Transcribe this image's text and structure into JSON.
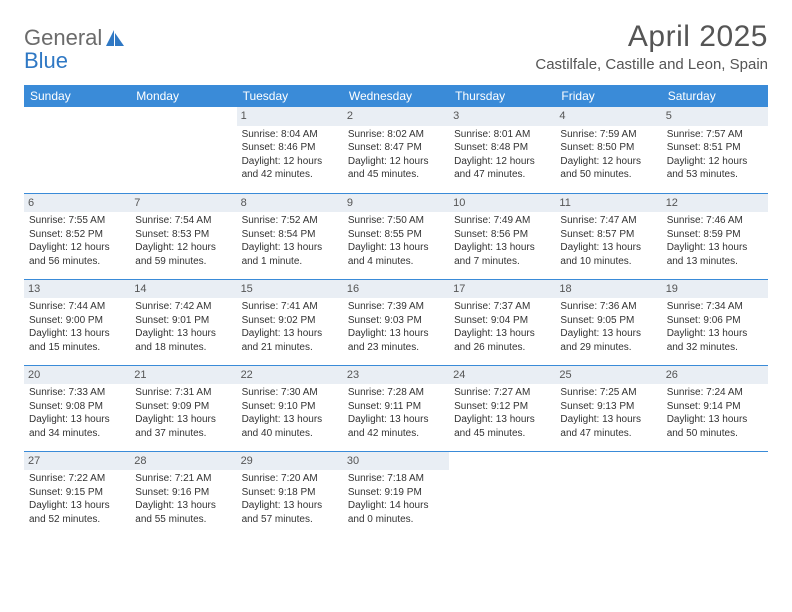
{
  "logo": {
    "line1": "General",
    "line2": "Blue"
  },
  "title": "April 2025",
  "location": "Castilfale, Castille and Leon, Spain",
  "colors": {
    "header_bg": "#3a8bd8",
    "header_text": "#ffffff",
    "daynum_bg": "#e9eef4",
    "border": "#3a8bd8",
    "page_bg": "#ffffff",
    "text": "#333333",
    "logo_gray": "#6b6b6b",
    "logo_blue": "#2f78c4"
  },
  "typography": {
    "title_fontsize": 30,
    "location_fontsize": 15,
    "weekday_fontsize": 12,
    "cell_fontsize": 10,
    "daynum_fontsize": 11
  },
  "weekdays": [
    "Sunday",
    "Monday",
    "Tuesday",
    "Wednesday",
    "Thursday",
    "Friday",
    "Saturday"
  ],
  "weeks": [
    [
      {
        "day": "",
        "text": ""
      },
      {
        "day": "",
        "text": ""
      },
      {
        "day": "1",
        "text": "Sunrise: 8:04 AM\nSunset: 8:46 PM\nDaylight: 12 hours and 42 minutes."
      },
      {
        "day": "2",
        "text": "Sunrise: 8:02 AM\nSunset: 8:47 PM\nDaylight: 12 hours and 45 minutes."
      },
      {
        "day": "3",
        "text": "Sunrise: 8:01 AM\nSunset: 8:48 PM\nDaylight: 12 hours and 47 minutes."
      },
      {
        "day": "4",
        "text": "Sunrise: 7:59 AM\nSunset: 8:50 PM\nDaylight: 12 hours and 50 minutes."
      },
      {
        "day": "5",
        "text": "Sunrise: 7:57 AM\nSunset: 8:51 PM\nDaylight: 12 hours and 53 minutes."
      }
    ],
    [
      {
        "day": "6",
        "text": "Sunrise: 7:55 AM\nSunset: 8:52 PM\nDaylight: 12 hours and 56 minutes."
      },
      {
        "day": "7",
        "text": "Sunrise: 7:54 AM\nSunset: 8:53 PM\nDaylight: 12 hours and 59 minutes."
      },
      {
        "day": "8",
        "text": "Sunrise: 7:52 AM\nSunset: 8:54 PM\nDaylight: 13 hours and 1 minute."
      },
      {
        "day": "9",
        "text": "Sunrise: 7:50 AM\nSunset: 8:55 PM\nDaylight: 13 hours and 4 minutes."
      },
      {
        "day": "10",
        "text": "Sunrise: 7:49 AM\nSunset: 8:56 PM\nDaylight: 13 hours and 7 minutes."
      },
      {
        "day": "11",
        "text": "Sunrise: 7:47 AM\nSunset: 8:57 PM\nDaylight: 13 hours and 10 minutes."
      },
      {
        "day": "12",
        "text": "Sunrise: 7:46 AM\nSunset: 8:59 PM\nDaylight: 13 hours and 13 minutes."
      }
    ],
    [
      {
        "day": "13",
        "text": "Sunrise: 7:44 AM\nSunset: 9:00 PM\nDaylight: 13 hours and 15 minutes."
      },
      {
        "day": "14",
        "text": "Sunrise: 7:42 AM\nSunset: 9:01 PM\nDaylight: 13 hours and 18 minutes."
      },
      {
        "day": "15",
        "text": "Sunrise: 7:41 AM\nSunset: 9:02 PM\nDaylight: 13 hours and 21 minutes."
      },
      {
        "day": "16",
        "text": "Sunrise: 7:39 AM\nSunset: 9:03 PM\nDaylight: 13 hours and 23 minutes."
      },
      {
        "day": "17",
        "text": "Sunrise: 7:37 AM\nSunset: 9:04 PM\nDaylight: 13 hours and 26 minutes."
      },
      {
        "day": "18",
        "text": "Sunrise: 7:36 AM\nSunset: 9:05 PM\nDaylight: 13 hours and 29 minutes."
      },
      {
        "day": "19",
        "text": "Sunrise: 7:34 AM\nSunset: 9:06 PM\nDaylight: 13 hours and 32 minutes."
      }
    ],
    [
      {
        "day": "20",
        "text": "Sunrise: 7:33 AM\nSunset: 9:08 PM\nDaylight: 13 hours and 34 minutes."
      },
      {
        "day": "21",
        "text": "Sunrise: 7:31 AM\nSunset: 9:09 PM\nDaylight: 13 hours and 37 minutes."
      },
      {
        "day": "22",
        "text": "Sunrise: 7:30 AM\nSunset: 9:10 PM\nDaylight: 13 hours and 40 minutes."
      },
      {
        "day": "23",
        "text": "Sunrise: 7:28 AM\nSunset: 9:11 PM\nDaylight: 13 hours and 42 minutes."
      },
      {
        "day": "24",
        "text": "Sunrise: 7:27 AM\nSunset: 9:12 PM\nDaylight: 13 hours and 45 minutes."
      },
      {
        "day": "25",
        "text": "Sunrise: 7:25 AM\nSunset: 9:13 PM\nDaylight: 13 hours and 47 minutes."
      },
      {
        "day": "26",
        "text": "Sunrise: 7:24 AM\nSunset: 9:14 PM\nDaylight: 13 hours and 50 minutes."
      }
    ],
    [
      {
        "day": "27",
        "text": "Sunrise: 7:22 AM\nSunset: 9:15 PM\nDaylight: 13 hours and 52 minutes."
      },
      {
        "day": "28",
        "text": "Sunrise: 7:21 AM\nSunset: 9:16 PM\nDaylight: 13 hours and 55 minutes."
      },
      {
        "day": "29",
        "text": "Sunrise: 7:20 AM\nSunset: 9:18 PM\nDaylight: 13 hours and 57 minutes."
      },
      {
        "day": "30",
        "text": "Sunrise: 7:18 AM\nSunset: 9:19 PM\nDaylight: 14 hours and 0 minutes."
      },
      {
        "day": "",
        "text": ""
      },
      {
        "day": "",
        "text": ""
      },
      {
        "day": "",
        "text": ""
      }
    ]
  ]
}
